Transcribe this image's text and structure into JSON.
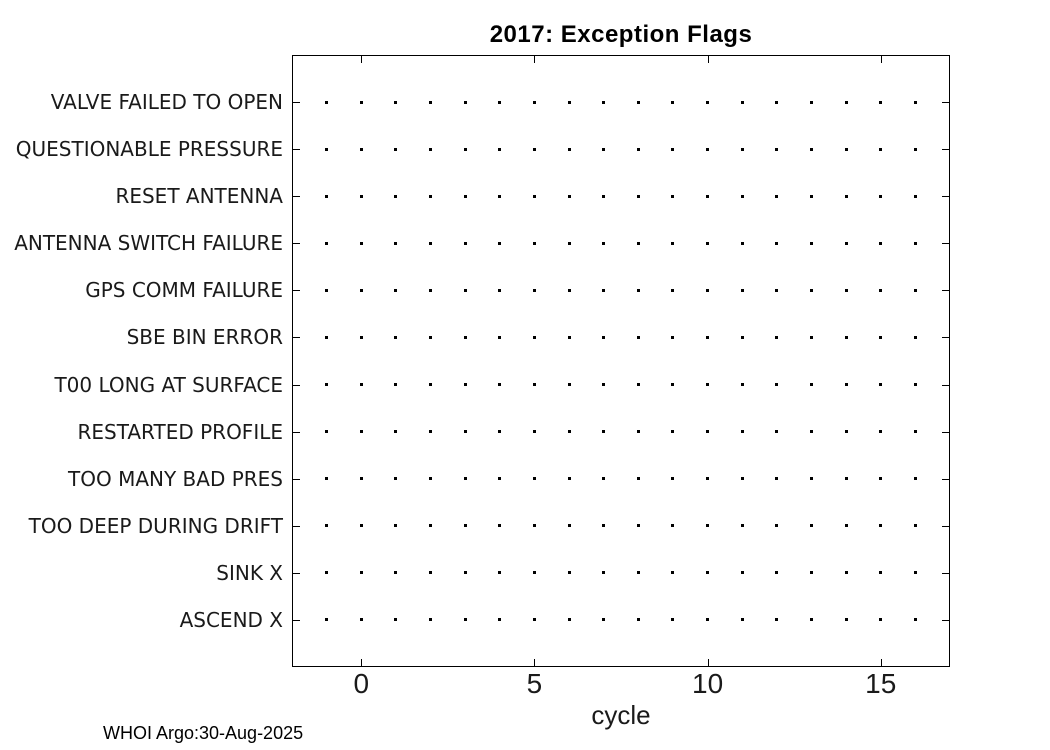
{
  "title": "2017: Exception Flags",
  "xlabel": "cycle",
  "footer": "WHOI Argo:30-Aug-2025",
  "chart_data": {
    "type": "scatter",
    "title": "2017: Exception Flags",
    "xlabel": "cycle",
    "ylabel": "",
    "xlim": [
      -2,
      17
    ],
    "x_ticks": [
      0,
      5,
      10,
      15
    ],
    "categories": [
      "VALVE FAILED TO OPEN",
      "QUESTIONABLE PRESSURE",
      "RESET ANTENNA",
      "ANTENNA SWITCH FAILURE",
      "GPS COMM FAILURE",
      "SBE BIN ERROR",
      "T00 LONG AT SURFACE",
      "RESTARTED PROFILE",
      "TOO MANY BAD PRES",
      "TOO DEEP DURING DRIFT",
      "SINK X",
      "ASCEND X"
    ],
    "series": [
      {
        "name": "baseline-dots",
        "note_visible": "one small dot per cycle on every category row",
        "x": [
          -1,
          0,
          1,
          2,
          3,
          4,
          5,
          6,
          7,
          8,
          9,
          10,
          11,
          12,
          13,
          14,
          15,
          16
        ]
      }
    ],
    "marker": "point",
    "grid": false,
    "legend": false,
    "colors": {
      "marker": "#000000",
      "axis": "#000000",
      "text": "#1a1a1a",
      "background": "#ffffff"
    }
  }
}
